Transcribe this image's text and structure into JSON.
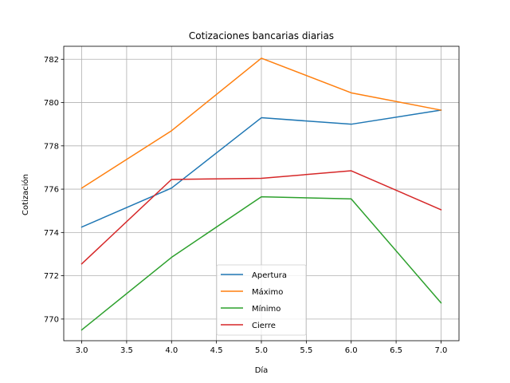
{
  "chart_data": {
    "type": "line",
    "title": "Cotizaciones bancarias diarias",
    "xlabel": "Día",
    "ylabel": "Cotización",
    "xlim": [
      2.8,
      7.2
    ],
    "ylim": [
      769.0,
      782.6
    ],
    "xticks": [
      3.0,
      3.5,
      4.0,
      4.5,
      5.0,
      5.5,
      6.0,
      6.5,
      7.0
    ],
    "xtick_labels": [
      "3.0",
      "3.5",
      "4.0",
      "4.5",
      "5.0",
      "5.5",
      "6.0",
      "6.5",
      "7.0"
    ],
    "yticks": [
      770,
      772,
      774,
      776,
      778,
      780,
      782
    ],
    "ytick_labels": [
      "770",
      "772",
      "774",
      "776",
      "778",
      "780",
      "782"
    ],
    "grid": true,
    "legend_position": "bottom-center",
    "x": [
      3,
      4,
      5,
      6,
      7
    ],
    "series": [
      {
        "name": "Apertura",
        "color": "#1f77b4",
        "values": [
          774.25,
          776.05,
          779.3,
          779.0,
          779.65
        ]
      },
      {
        "name": "Máximo",
        "color": "#ff7f0e",
        "values": [
          776.05,
          778.7,
          782.05,
          780.45,
          779.65
        ]
      },
      {
        "name": "Mínimo",
        "color": "#2ca02c",
        "values": [
          769.5,
          772.85,
          775.65,
          775.55,
          770.75
        ]
      },
      {
        "name": "Cierre",
        "color": "#d62728",
        "values": [
          772.55,
          776.45,
          776.5,
          776.85,
          775.05
        ]
      }
    ]
  }
}
